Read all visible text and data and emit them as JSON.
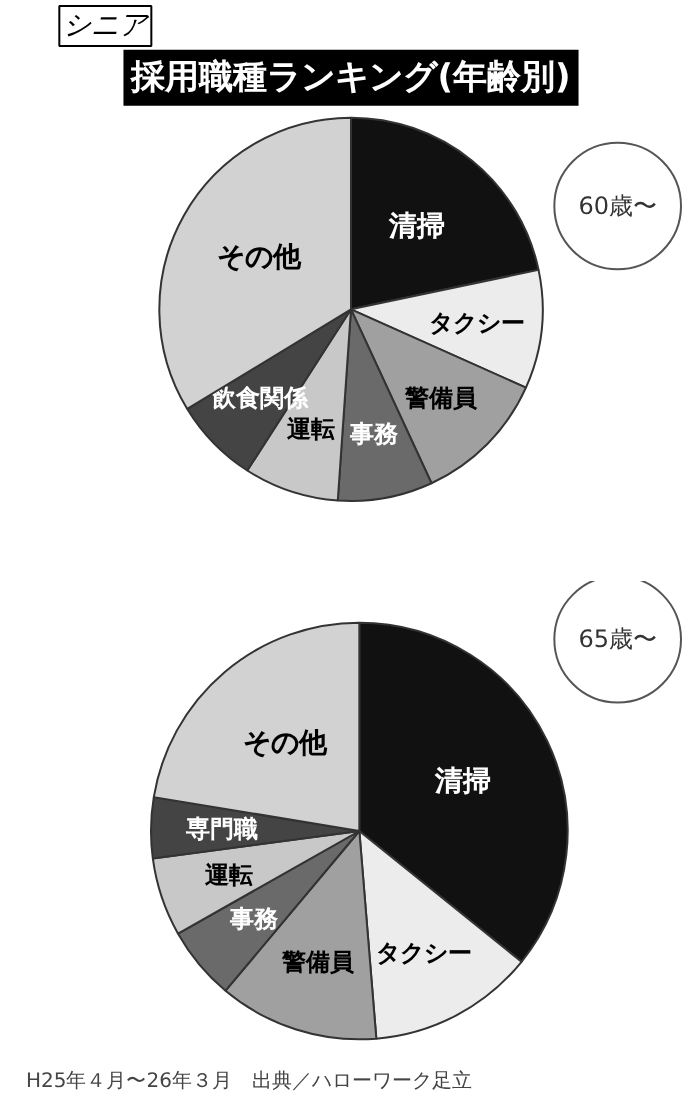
{
  "chart_data": [
    {
      "type": "pie",
      "subtitle": "シニア",
      "title": "採用職種ランキング(年齢別)",
      "annotations": [
        "60歳〜"
      ],
      "categories": [
        "清掃",
        "タクシー",
        "警備員",
        "事務",
        "運転",
        "飲食関係",
        "その他"
      ],
      "values": [
        21.7,
        10,
        11.4,
        8,
        8,
        7.2,
        33.7
      ],
      "colors": [
        "#111111",
        "#ececec",
        "#a0a0a0",
        "#6a6a6a",
        "#c8c8c8",
        "#444444",
        "#d2d2d2"
      ]
    },
    {
      "type": "pie",
      "annotations": [
        "65歳〜",
        "H25年４月〜26年３月　出典／ハローワーク足立"
      ],
      "categories": [
        "清掃",
        "タクシー",
        "警備員",
        "事務",
        "運転",
        "専門職",
        "その他"
      ],
      "values": [
        35.8,
        12.9,
        12.4,
        5.7,
        6.1,
        4.7,
        22.4
      ],
      "colors": [
        "#111111",
        "#ececec",
        "#a0a0a0",
        "#6a6a6a",
        "#c8c8c8",
        "#444444",
        "#d2d2d2"
      ]
    }
  ]
}
